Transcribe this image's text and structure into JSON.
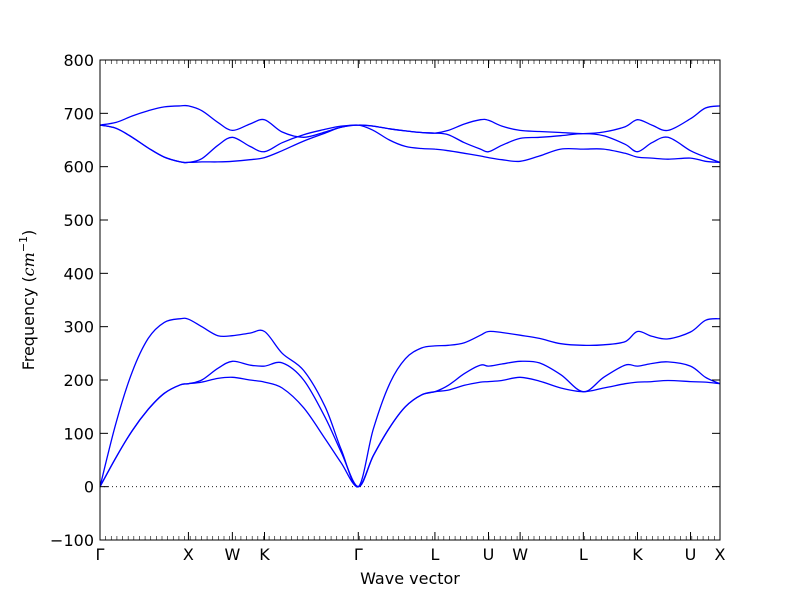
{
  "chart_data": {
    "type": "line",
    "title": "",
    "xlabel": "Wave vector",
    "ylabel": {
      "prefix": "Frequency (",
      "unit": "cm",
      "exponent": "−1",
      "suffix": ")"
    },
    "ylim": [
      -100,
      800
    ],
    "yticks": [
      -100,
      0,
      100,
      200,
      300,
      400,
      500,
      600,
      700,
      800
    ],
    "xlim": [
      0,
      11.57
    ],
    "kpoints": [
      {
        "label": "Γ",
        "x": 0.0
      },
      {
        "label": "X",
        "x": 1.65
      },
      {
        "label": "W",
        "x": 2.47
      },
      {
        "label": "K",
        "x": 3.07
      },
      {
        "label": "Γ",
        "x": 4.82
      },
      {
        "label": "L",
        "x": 6.25
      },
      {
        "label": "U",
        "x": 7.25
      },
      {
        "label": "W",
        "x": 7.84
      },
      {
        "label": "L",
        "x": 9.02
      },
      {
        "label": "K",
        "x": 10.03
      },
      {
        "label": "U",
        "x": 11.02
      },
      {
        "label": "X",
        "x": 11.57
      }
    ],
    "zero_line": true,
    "line_color": "#0000ff",
    "grid": false,
    "legend": "none",
    "series": [
      {
        "x": [
          0,
          0.3,
          0.6,
          0.9,
          1.2,
          1.5,
          1.65,
          1.9,
          2.2,
          2.47,
          2.8,
          3.07,
          3.4,
          3.8,
          4.2,
          4.5,
          4.82,
          5.1,
          5.4,
          5.7,
          6.0,
          6.25,
          6.5,
          6.8,
          7.1,
          7.25,
          7.5,
          7.84,
          8.2,
          8.6,
          9.02,
          9.4,
          9.8,
          10.03,
          10.3,
          10.6,
          11.02,
          11.3,
          11.57
        ],
        "y": [
          0,
          55,
          105,
          145,
          175,
          191,
          193,
          196,
          203,
          205,
          200,
          196,
          185,
          148,
          90,
          45,
          0,
          58,
          110,
          150,
          172,
          178,
          181,
          190,
          196,
          197,
          199,
          205,
          198,
          185,
          178,
          185,
          193,
          196,
          197,
          199,
          197,
          196,
          193
        ]
      },
      {
        "x": [
          0,
          0.3,
          0.6,
          0.9,
          1.2,
          1.5,
          1.65,
          1.9,
          2.2,
          2.47,
          2.8,
          3.07,
          3.4,
          3.8,
          4.2,
          4.5,
          4.82,
          5.1,
          5.4,
          5.7,
          6.0,
          6.25,
          6.5,
          6.8,
          7.1,
          7.25,
          7.5,
          7.84,
          8.2,
          8.6,
          9.02,
          9.4,
          9.8,
          10.03,
          10.3,
          10.6,
          11.02,
          11.3,
          11.57
        ],
        "y": [
          0,
          55,
          105,
          145,
          175,
          191,
          193,
          200,
          222,
          235,
          228,
          226,
          232,
          200,
          130,
          65,
          0,
          58,
          110,
          150,
          172,
          178,
          190,
          212,
          228,
          226,
          230,
          235,
          232,
          210,
          178,
          205,
          228,
          226,
          231,
          234,
          226,
          205,
          193
        ]
      },
      {
        "x": [
          0,
          0.3,
          0.6,
          0.9,
          1.2,
          1.5,
          1.65,
          1.9,
          2.2,
          2.47,
          2.8,
          3.07,
          3.4,
          3.8,
          4.2,
          4.5,
          4.82,
          5.1,
          5.4,
          5.7,
          6.0,
          6.25,
          6.5,
          6.8,
          7.1,
          7.25,
          7.5,
          7.84,
          8.2,
          8.6,
          9.02,
          9.4,
          9.8,
          10.03,
          10.3,
          10.6,
          11.02,
          11.3,
          11.57
        ],
        "y": [
          0,
          120,
          215,
          278,
          308,
          315,
          314,
          300,
          283,
          283,
          288,
          291,
          250,
          218,
          150,
          70,
          0,
          108,
          192,
          240,
          260,
          264,
          265,
          270,
          284,
          291,
          289,
          284,
          278,
          268,
          265,
          266,
          272,
          291,
          282,
          277,
          290,
          312,
          315
        ]
      },
      {
        "x": [
          0,
          0.3,
          0.6,
          0.9,
          1.2,
          1.5,
          1.65,
          1.9,
          2.2,
          2.47,
          2.8,
          3.07,
          3.4,
          3.8,
          4.2,
          4.5,
          4.82,
          5.1,
          5.4,
          5.7,
          6.0,
          6.25,
          6.5,
          6.8,
          7.1,
          7.25,
          7.5,
          7.84,
          8.2,
          8.6,
          9.02,
          9.4,
          9.8,
          10.03,
          10.3,
          10.6,
          11.02,
          11.3,
          11.57
        ],
        "y": [
          678,
          672,
          655,
          635,
          618,
          609,
          608,
          609,
          609,
          610,
          613,
          617,
          630,
          648,
          663,
          674,
          678,
          668,
          650,
          638,
          634,
          633,
          630,
          625,
          620,
          617,
          613,
          610,
          620,
          633,
          633,
          633,
          625,
          618,
          616,
          614,
          616,
          610,
          608
        ]
      },
      {
        "x": [
          0,
          0.3,
          0.6,
          0.9,
          1.2,
          1.5,
          1.65,
          1.9,
          2.2,
          2.47,
          2.8,
          3.07,
          3.4,
          3.8,
          4.2,
          4.5,
          4.82,
          5.1,
          5.4,
          5.7,
          6.0,
          6.25,
          6.5,
          6.8,
          7.1,
          7.25,
          7.5,
          7.84,
          8.2,
          8.6,
          9.02,
          9.4,
          9.8,
          10.03,
          10.3,
          10.6,
          11.02,
          11.3,
          11.57
        ],
        "y": [
          678,
          672,
          655,
          635,
          618,
          609,
          608,
          615,
          640,
          655,
          638,
          628,
          645,
          660,
          670,
          676,
          678,
          676,
          671,
          667,
          664,
          663,
          660,
          645,
          633,
          628,
          640,
          653,
          655,
          658,
          662,
          658,
          642,
          628,
          645,
          655,
          630,
          618,
          608
        ]
      },
      {
        "x": [
          0,
          0.3,
          0.6,
          0.9,
          1.2,
          1.5,
          1.65,
          1.9,
          2.2,
          2.47,
          2.8,
          3.07,
          3.4,
          3.8,
          4.2,
          4.5,
          4.82,
          5.1,
          5.4,
          5.7,
          6.0,
          6.25,
          6.5,
          6.8,
          7.1,
          7.25,
          7.5,
          7.84,
          8.2,
          8.6,
          9.02,
          9.4,
          9.8,
          10.03,
          10.3,
          10.6,
          11.02,
          11.3,
          11.57
        ],
        "y": [
          678,
          683,
          695,
          705,
          712,
          714,
          714,
          705,
          683,
          668,
          680,
          688,
          665,
          655,
          665,
          674,
          678,
          676,
          671,
          667,
          664,
          663,
          668,
          680,
          688,
          687,
          676,
          668,
          666,
          664,
          662,
          665,
          675,
          688,
          678,
          668,
          690,
          710,
          714
        ]
      }
    ]
  }
}
